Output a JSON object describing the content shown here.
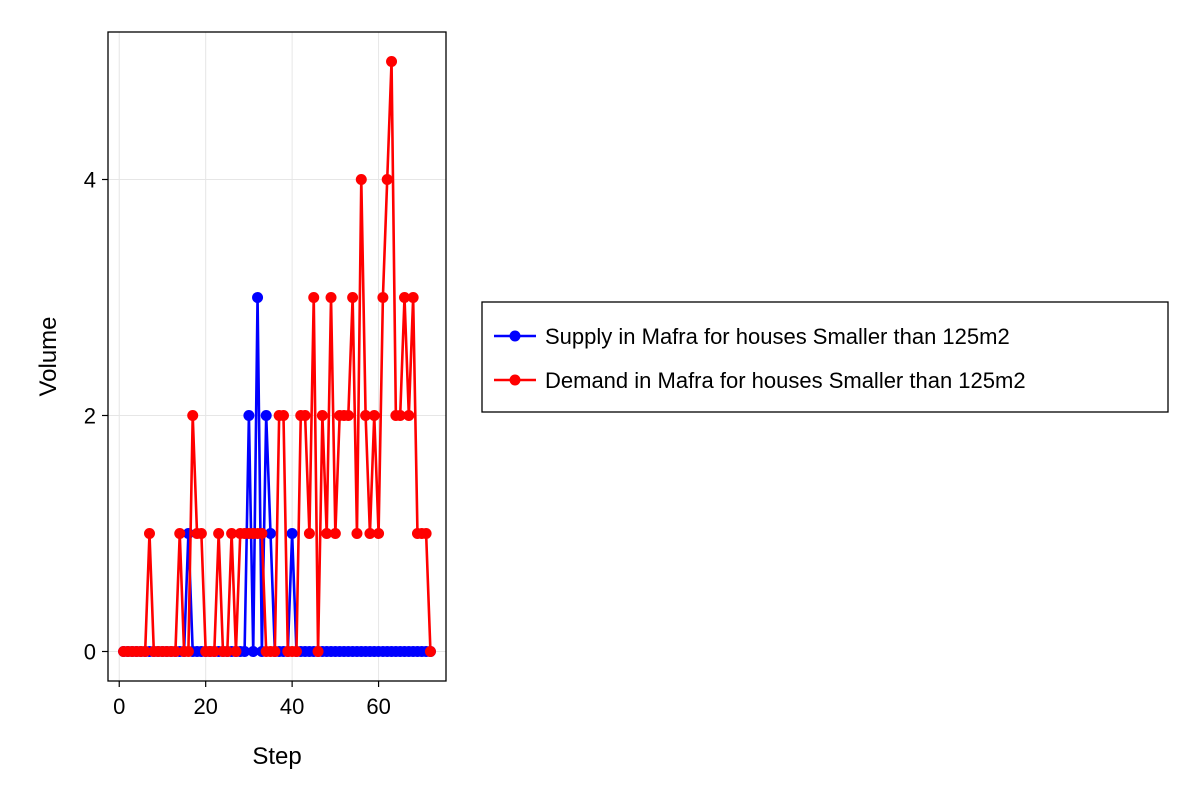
{
  "chart_data": {
    "type": "line",
    "title": "",
    "xlabel": "Step",
    "ylabel": "Volume",
    "xlim": [
      -2.6,
      75.6
    ],
    "ylim": [
      -0.25,
      5.25
    ],
    "xticks": [
      0,
      20,
      40,
      60
    ],
    "yticks": [
      0,
      2,
      4
    ],
    "grid": true,
    "legend_position": "right",
    "x": [
      1,
      2,
      3,
      4,
      5,
      6,
      7,
      8,
      9,
      10,
      11,
      12,
      13,
      14,
      15,
      16,
      17,
      18,
      19,
      20,
      21,
      22,
      23,
      24,
      25,
      26,
      27,
      28,
      29,
      30,
      31,
      32,
      33,
      34,
      35,
      36,
      37,
      38,
      39,
      40,
      41,
      42,
      43,
      44,
      45,
      46,
      47,
      48,
      49,
      50,
      51,
      52,
      53,
      54,
      55,
      56,
      57,
      58,
      59,
      60,
      61,
      62,
      63,
      64,
      65,
      66,
      67,
      68,
      69,
      70,
      71,
      72
    ],
    "series": [
      {
        "name": "Supply in Mafra for houses Smaller than 125m2",
        "color": "#0000ff",
        "values": [
          0,
          0,
          0,
          0,
          0,
          0,
          0,
          0,
          0,
          0,
          0,
          0,
          0,
          0,
          0,
          1,
          0,
          0,
          0,
          0,
          0,
          0,
          0,
          0,
          0,
          0,
          0,
          0,
          0,
          2,
          0,
          3,
          0,
          2,
          1,
          0,
          0,
          0,
          0,
          1,
          0,
          0,
          0,
          0,
          0,
          0,
          0,
          0,
          0,
          0,
          0,
          0,
          0,
          0,
          0,
          0,
          0,
          0,
          0,
          0,
          0,
          0,
          0,
          0,
          0,
          0,
          0,
          0,
          0,
          0,
          0,
          0
        ]
      },
      {
        "name": "Demand in Mafra for houses Smaller than 125m2",
        "color": "#ff0000",
        "values": [
          0,
          0,
          0,
          0,
          0,
          0,
          1,
          0,
          0,
          0,
          0,
          0,
          0,
          1,
          0,
          0,
          2,
          1,
          1,
          0,
          0,
          0,
          1,
          0,
          0,
          1,
          0,
          1,
          1,
          1,
          1,
          1,
          1,
          0,
          0,
          0,
          2,
          2,
          0,
          0,
          0,
          2,
          2,
          1,
          3,
          0,
          2,
          1,
          3,
          1,
          2,
          2,
          2,
          3,
          1,
          4,
          2,
          1,
          2,
          1,
          3,
          4,
          5,
          2,
          2,
          3,
          2,
          3,
          1,
          1,
          1,
          0
        ]
      }
    ]
  }
}
